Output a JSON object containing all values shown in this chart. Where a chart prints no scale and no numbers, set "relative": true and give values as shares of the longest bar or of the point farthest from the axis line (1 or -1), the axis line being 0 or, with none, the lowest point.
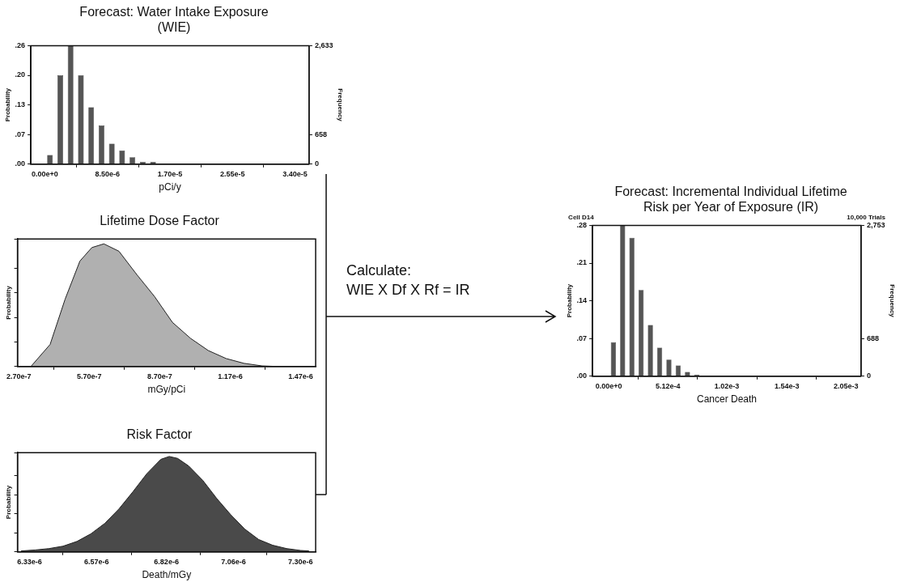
{
  "chart_data": [
    {
      "type": "histogram",
      "title": "Forecast: Water Intake Exposure (WIE)",
      "xlabel": "pCi/y",
      "ylabel": "Probability",
      "y2label": "Frequency",
      "color": "#555555",
      "bins": [
        0,
        1.4e-06,
        2.8e-06,
        4.2e-06,
        5.6e-06,
        7e-06,
        8.4e-06,
        9.8e-06,
        1.12e-05,
        1.26e-05,
        1.4e-05,
        1.54e-05
      ],
      "values": [
        0.02,
        0.195,
        0.26,
        0.195,
        0.125,
        0.085,
        0.045,
        0.03,
        0.015,
        0.005,
        0.005
      ],
      "xlim": [
        -1.9e-06,
        3.59e-05
      ],
      "xticks": [
        {
          "value": 0,
          "label": "0.00e+0"
        },
        {
          "value": 8.5e-06,
          "label": "8.50e-6"
        },
        {
          "value": 1.7e-05,
          "label": "1.70e-5"
        },
        {
          "value": 2.55e-05,
          "label": "2.55e-5"
        },
        {
          "value": 3.4e-05,
          "label": "3.40e-5"
        }
      ],
      "ylim": [
        0,
        0.26
      ],
      "yticks": [
        {
          "value": 0,
          "label": ".00"
        },
        {
          "value": 0.065,
          "label": ".07"
        },
        {
          "value": 0.13,
          "label": ".13"
        },
        {
          "value": 0.195,
          "label": ".20"
        },
        {
          "value": 0.26,
          "label": ".26"
        }
      ],
      "y2lim": [
        0,
        2633
      ],
      "y2ticks": [
        0,
        658,
        {
          "value": 2633,
          "label": "2,633"
        }
      ]
    },
    {
      "type": "area",
      "title": "Lifetime Dose Factor",
      "xlabel": "mGy/pCi",
      "ylabel": "Probability",
      "relative": true,
      "color": "#b0b0b0",
      "x": [
        3.21e-07,
        4.03e-07,
        4.67e-07,
        5.3e-07,
        5.81e-07,
        6.32e-07,
        6.96e-07,
        7.72e-07,
        8.48e-07,
        9.24e-07,
        1.001e-06,
        1.077e-06,
        1.153e-06,
        1.229e-06,
        1.306e-06,
        1.38e-06
      ],
      "values": [
        0,
        0.18,
        0.55,
        0.86,
        0.97,
        1,
        0.94,
        0.75,
        0.57,
        0.36,
        0.23,
        0.13,
        0.065,
        0.026,
        0.005,
        0
      ],
      "xlim": [
        2.64e-07,
        1.534e-06
      ],
      "xticks": [
        {
          "value": 2.7e-07,
          "label": "2.70e-7"
        },
        {
          "value": 5.7e-07,
          "label": "5.70e-7"
        },
        {
          "value": 8.7e-07,
          "label": "8.70e-7"
        },
        {
          "value": 1.17e-06,
          "label": "1.17e-6"
        },
        {
          "value": 1.47e-06,
          "label": "1.47e-6"
        }
      ]
    },
    {
      "type": "area",
      "title": "Risk Factor",
      "xlabel": "Death/mGy",
      "ylabel": "Probability",
      "relative": true,
      "color": "#4a4a4a",
      "x": [
        6.3e-06,
        6.35e-06,
        6.4e-06,
        6.45e-06,
        6.5e-06,
        6.55e-06,
        6.6e-06,
        6.65e-06,
        6.7e-06,
        6.75e-06,
        6.8e-06,
        6.83e-06,
        6.86e-06,
        6.9e-06,
        6.95e-06,
        7e-06,
        7.05e-06,
        7.1e-06,
        7.15e-06,
        7.2e-06,
        7.25e-06,
        7.3e-06,
        7.33e-06
      ],
      "values": [
        0.01,
        0.02,
        0.035,
        0.06,
        0.11,
        0.19,
        0.3,
        0.45,
        0.63,
        0.82,
        0.97,
        1,
        0.98,
        0.9,
        0.75,
        0.56,
        0.39,
        0.24,
        0.13,
        0.07,
        0.035,
        0.015,
        0.01
      ],
      "xlim": [
        6.287e-06,
        7.354e-06
      ],
      "xticks": [
        {
          "value": 6.33e-06,
          "label": "6.33e-6"
        },
        {
          "value": 6.57e-06,
          "label": "6.57e-6"
        },
        {
          "value": 6.82e-06,
          "label": "6.82e-6"
        },
        {
          "value": 7.06e-06,
          "label": "7.06e-6"
        },
        {
          "value": 7.3e-06,
          "label": "7.30e-6"
        }
      ]
    },
    {
      "type": "histogram",
      "title": "Forecast: Incremental Individual Lifetime Risk per Year of Exposure (IR)",
      "xlabel": "Cancer Death",
      "ylabel": "Probability",
      "y2label": "Frequency",
      "color": "#555555",
      "annotations": [
        "Cell D14",
        "10,000 Trials"
      ],
      "bins": [
        0,
        8e-05,
        0.00016,
        0.00024,
        0.00032,
        0.0004,
        0.00048,
        0.00056,
        0.00064,
        0.00072,
        0.0008
      ],
      "values": [
        0.063,
        0.28,
        0.257,
        0.16,
        0.095,
        0.053,
        0.031,
        0.02,
        0.008,
        0.003
      ],
      "xlim": [
        -0.00014,
        0.00218
      ],
      "xticks": [
        {
          "value": 0,
          "label": "0.00e+0"
        },
        {
          "value": 0.000512,
          "label": "5.12e-4"
        },
        {
          "value": 0.00102,
          "label": "1.02e-3"
        },
        {
          "value": 0.00154,
          "label": "1.54e-3"
        },
        {
          "value": 0.00205,
          "label": "2.05e-3"
        }
      ],
      "ylim": [
        0,
        0.28
      ],
      "yticks": [
        {
          "value": 0,
          "label": ".00"
        },
        {
          "value": 0.07,
          "label": ".07"
        },
        {
          "value": 0.14,
          "label": ".14"
        },
        {
          "value": 0.21,
          "label": ".21"
        },
        {
          "value": 0.28,
          "label": ".28"
        }
      ],
      "y2lim": [
        0,
        2753
      ],
      "y2ticks": [
        0,
        688,
        {
          "value": 2753,
          "label": "2,753"
        }
      ]
    },
    {
      "type": "other",
      "annotations": [
        "Calculate:",
        "WIE X Df X Rf = IR"
      ]
    }
  ]
}
